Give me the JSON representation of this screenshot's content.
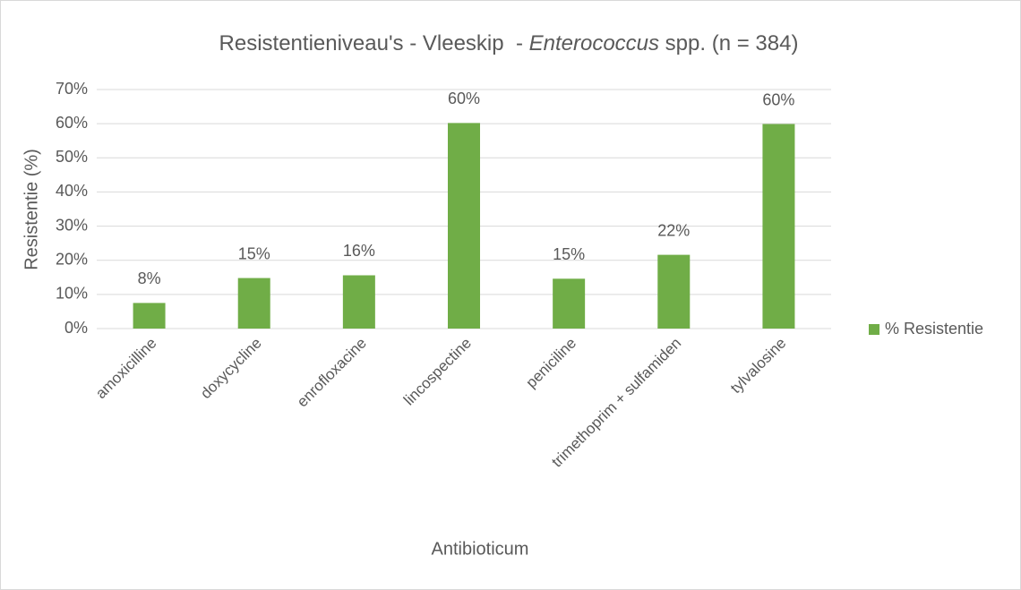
{
  "chart_data": {
    "type": "bar",
    "title": [
      "Resistentieniveau's - Vleeskip  - ",
      "Enterococcus",
      " spp. (n = 384)"
    ],
    "x_label": "Antibioticum",
    "y_label": "Resistentie (%)",
    "categories": [
      "amoxicilline",
      "doxycycline",
      "enrofloxacine",
      "lincospectine",
      "peniciline",
      "trimethoprim + sulfamiden",
      "tylvalosine"
    ],
    "series": [
      {
        "name": "% Resistentie",
        "color": "#70ad47",
        "values": [
          7.5,
          14.8,
          15.6,
          60.2,
          14.6,
          21.6,
          59.9
        ],
        "value_labels": [
          "8%",
          "15%",
          "16%",
          "60%",
          "15%",
          "22%",
          "60%"
        ]
      }
    ],
    "ylim": [
      0,
      70
    ],
    "yticks": [
      {
        "value": 0,
        "label": "0%"
      },
      {
        "value": 10,
        "label": "10%"
      },
      {
        "value": 20,
        "label": "20%"
      },
      {
        "value": 30,
        "label": "30%"
      },
      {
        "value": 40,
        "label": "40%"
      },
      {
        "value": 50,
        "label": "50%"
      },
      {
        "value": 60,
        "label": "60%"
      },
      {
        "value": 70,
        "label": "70%"
      }
    ],
    "grid": true,
    "legend": "right"
  }
}
